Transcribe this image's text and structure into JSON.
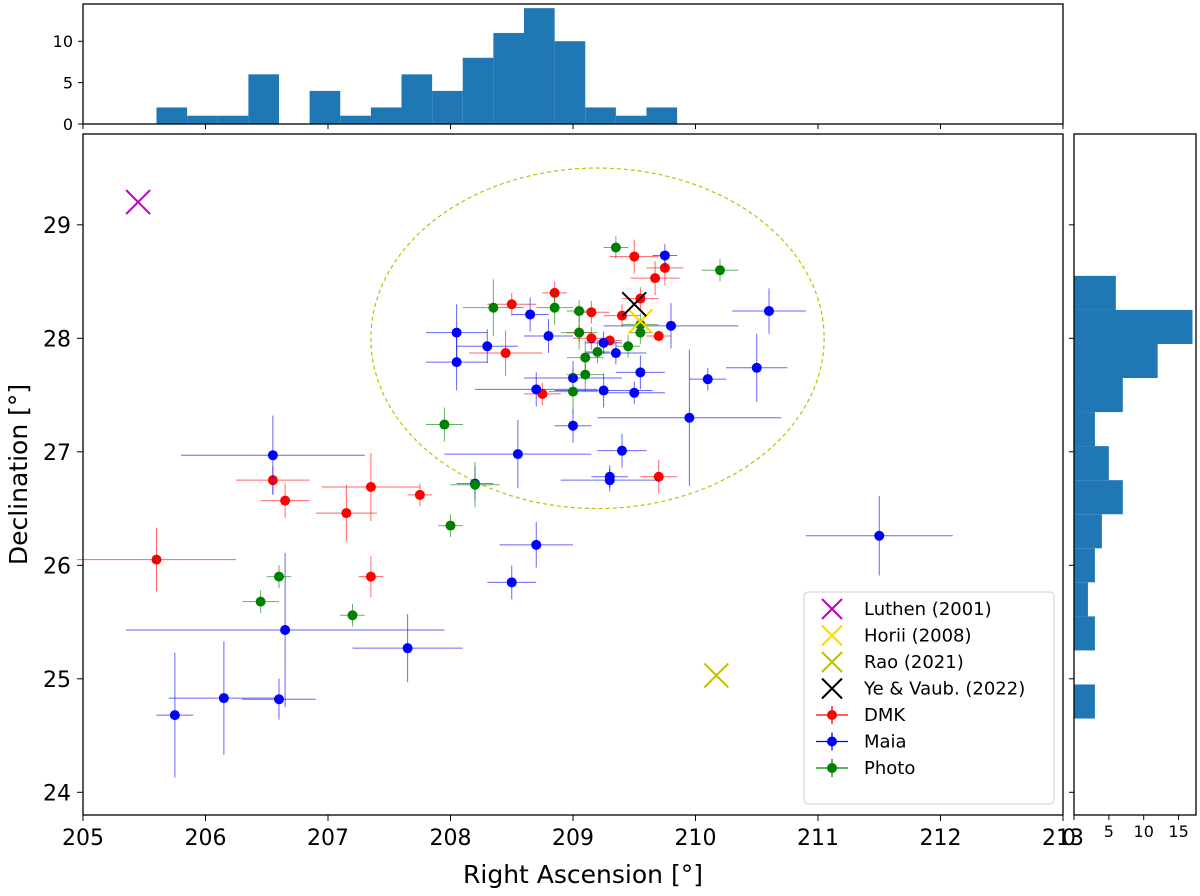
{
  "chart_data": {
    "type": "scatter",
    "xlabel": "Right Ascension [$^\\circ$]",
    "xlabel_text": "Right Ascension [°]",
    "ylabel_text": "Declination [°]",
    "xlim": [
      205,
      213
    ],
    "ylim": [
      23.8,
      29.8
    ],
    "xticks": [
      "205",
      "206",
      "207",
      "208",
      "209",
      "210",
      "211",
      "212",
      "213"
    ],
    "yticks": [
      "24",
      "25",
      "26",
      "27",
      "28",
      "29"
    ],
    "grid": false,
    "legend_position": "lower-right",
    "circle": {
      "center": [
        209.2,
        28.0
      ],
      "radius_deg_x": 1.85,
      "radius_deg_y": 1.5,
      "color": "#bfbf00",
      "style": "dashed"
    },
    "markers": [
      {
        "name": "Luthen (2001)",
        "x": 205.45,
        "y": 29.2,
        "color": "#bf00bf"
      },
      {
        "name": "Horii (2008)",
        "x": 209.55,
        "y": 28.15,
        "color": "#ffd700"
      },
      {
        "name": "Rao (2021)",
        "x": 210.17,
        "y": 25.03,
        "color": "#bfbf00"
      },
      {
        "name": "Ye & Vaub. (2022)",
        "x": 209.5,
        "y": 28.3,
        "color": "#000000"
      }
    ],
    "series": [
      {
        "name": "DMK",
        "color": "#ff0000",
        "points": [
          [
            205.6,
            26.05,
            0.65,
            0.28
          ],
          [
            206.55,
            26.75,
            0.3,
            0.12
          ],
          [
            206.65,
            26.57,
            0.2,
            0.15
          ],
          [
            207.15,
            26.46,
            0.25,
            0.25
          ],
          [
            207.35,
            26.69,
            0.4,
            0.3
          ],
          [
            207.75,
            26.62,
            0.1,
            0.1
          ],
          [
            207.35,
            25.9,
            0.1,
            0.18
          ],
          [
            208.45,
            27.87,
            0.3,
            0.2
          ],
          [
            208.5,
            28.3,
            0.2,
            0.1
          ],
          [
            208.75,
            27.51,
            0.15,
            0.1
          ],
          [
            208.85,
            28.4,
            0.1,
            0.1
          ],
          [
            209.15,
            28.0,
            0.15,
            0.1
          ],
          [
            209.15,
            28.23,
            0.15,
            0.1
          ],
          [
            209.3,
            27.98,
            0.1,
            0.05
          ],
          [
            209.4,
            28.2,
            0.15,
            0.1
          ],
          [
            209.5,
            28.72,
            0.2,
            0.15
          ],
          [
            209.55,
            28.35,
            0.15,
            0.1
          ],
          [
            209.67,
            28.53,
            0.2,
            0.15
          ],
          [
            209.75,
            28.62,
            0.15,
            0.15
          ],
          [
            209.7,
            28.02,
            0.1,
            0.05
          ],
          [
            209.7,
            26.78,
            0.15,
            0.15
          ],
          [
            209.05,
            28.05,
            0.1,
            0.08
          ]
        ]
      },
      {
        "name": "Maia",
        "color": "#0000ff",
        "points": [
          [
            205.75,
            24.68,
            0.15,
            0.55
          ],
          [
            206.15,
            24.83,
            0.45,
            0.5
          ],
          [
            206.6,
            24.82,
            0.3,
            0.18
          ],
          [
            206.65,
            25.43,
            1.3,
            0.68
          ],
          [
            207.65,
            25.27,
            0.45,
            0.3
          ],
          [
            206.55,
            26.97,
            0.75,
            0.35
          ],
          [
            208.2,
            26.72,
            0.15,
            0.15
          ],
          [
            208.5,
            25.85,
            0.2,
            0.15
          ],
          [
            208.7,
            26.18,
            0.3,
            0.2
          ],
          [
            208.55,
            26.98,
            0.6,
            0.3
          ],
          [
            208.05,
            28.05,
            0.25,
            0.25
          ],
          [
            208.05,
            27.79,
            0.25,
            0.25
          ],
          [
            208.3,
            27.93,
            0.25,
            0.15
          ],
          [
            208.65,
            28.21,
            0.15,
            0.15
          ],
          [
            208.8,
            28.02,
            0.2,
            0.15
          ],
          [
            208.7,
            27.55,
            0.5,
            0.15
          ],
          [
            209.0,
            27.65,
            0.4,
            0.15
          ],
          [
            209.0,
            27.23,
            0.15,
            0.15
          ],
          [
            209.25,
            27.54,
            0.4,
            0.15
          ],
          [
            209.35,
            27.87,
            0.25,
            0.1
          ],
          [
            209.25,
            27.96,
            0.15,
            0.1
          ],
          [
            209.5,
            27.52,
            0.25,
            0.1
          ],
          [
            209.55,
            27.7,
            0.2,
            0.15
          ],
          [
            209.3,
            26.75,
            0.4,
            0.1
          ],
          [
            209.3,
            26.78,
            0.15,
            0.1
          ],
          [
            209.4,
            27.01,
            0.2,
            0.15
          ],
          [
            209.75,
            28.73,
            0.1,
            0.1
          ],
          [
            209.8,
            28.11,
            0.55,
            0.2
          ],
          [
            209.95,
            27.3,
            0.75,
            0.6
          ],
          [
            210.1,
            27.64,
            0.15,
            0.1
          ],
          [
            210.5,
            27.74,
            0.25,
            0.3
          ],
          [
            210.6,
            28.24,
            0.3,
            0.2
          ],
          [
            211.5,
            26.26,
            0.6,
            0.35
          ]
        ]
      },
      {
        "name": "Photo",
        "color": "#008000",
        "points": [
          [
            206.45,
            25.68,
            0.15,
            0.1
          ],
          [
            206.6,
            25.9,
            0.1,
            0.1
          ],
          [
            207.2,
            25.56,
            0.1,
            0.1
          ],
          [
            208.0,
            26.35,
            0.1,
            0.1
          ],
          [
            207.95,
            27.24,
            0.15,
            0.15
          ],
          [
            208.2,
            26.71,
            0.2,
            0.2
          ],
          [
            208.35,
            28.27,
            0.25,
            0.25
          ],
          [
            208.85,
            28.27,
            0.15,
            0.15
          ],
          [
            209.0,
            27.53,
            0.2,
            0.2
          ],
          [
            209.1,
            27.83,
            0.15,
            0.15
          ],
          [
            209.1,
            27.68,
            0.15,
            0.15
          ],
          [
            209.2,
            27.88,
            0.1,
            0.1
          ],
          [
            209.05,
            28.05,
            0.15,
            0.15
          ],
          [
            209.05,
            28.24,
            0.1,
            0.1
          ],
          [
            209.35,
            28.8,
            0.1,
            0.1
          ],
          [
            209.45,
            27.93,
            0.1,
            0.1
          ],
          [
            209.55,
            28.05,
            0.1,
            0.1
          ],
          [
            209.55,
            28.12,
            0.15,
            0.1
          ],
          [
            210.2,
            28.6,
            0.15,
            0.1
          ]
        ]
      }
    ],
    "ra_hist": {
      "edges": [
        205.6,
        205.85,
        206.1,
        206.35,
        206.6,
        206.85,
        207.1,
        207.35,
        207.6,
        207.85,
        208.1,
        208.35,
        208.6,
        208.85,
        209.1,
        209.35,
        209.6,
        209.85,
        210.1,
        210.35,
        210.6,
        210.85
      ],
      "counts": [
        2,
        1,
        1,
        6,
        0,
        4,
        1,
        2,
        6,
        4,
        8,
        11,
        14,
        10,
        2,
        1,
        2,
        0,
        0,
        0,
        0
      ],
      "yticks": [
        "0",
        "5",
        "10"
      ],
      "ymax": 14.5
    },
    "dec_hist": {
      "edges": [
        24.65,
        24.95,
        25.25,
        25.55,
        25.85,
        26.15,
        26.45,
        26.75,
        27.05,
        27.35,
        27.65,
        27.95,
        28.25,
        28.55
      ],
      "counts": [
        3,
        0,
        3,
        2,
        3,
        4,
        7,
        5,
        3,
        7,
        12,
        17,
        6
      ],
      "xticks": [
        "5",
        "10",
        "15"
      ],
      "tick0": "0",
      "xmax": 17.5
    }
  }
}
